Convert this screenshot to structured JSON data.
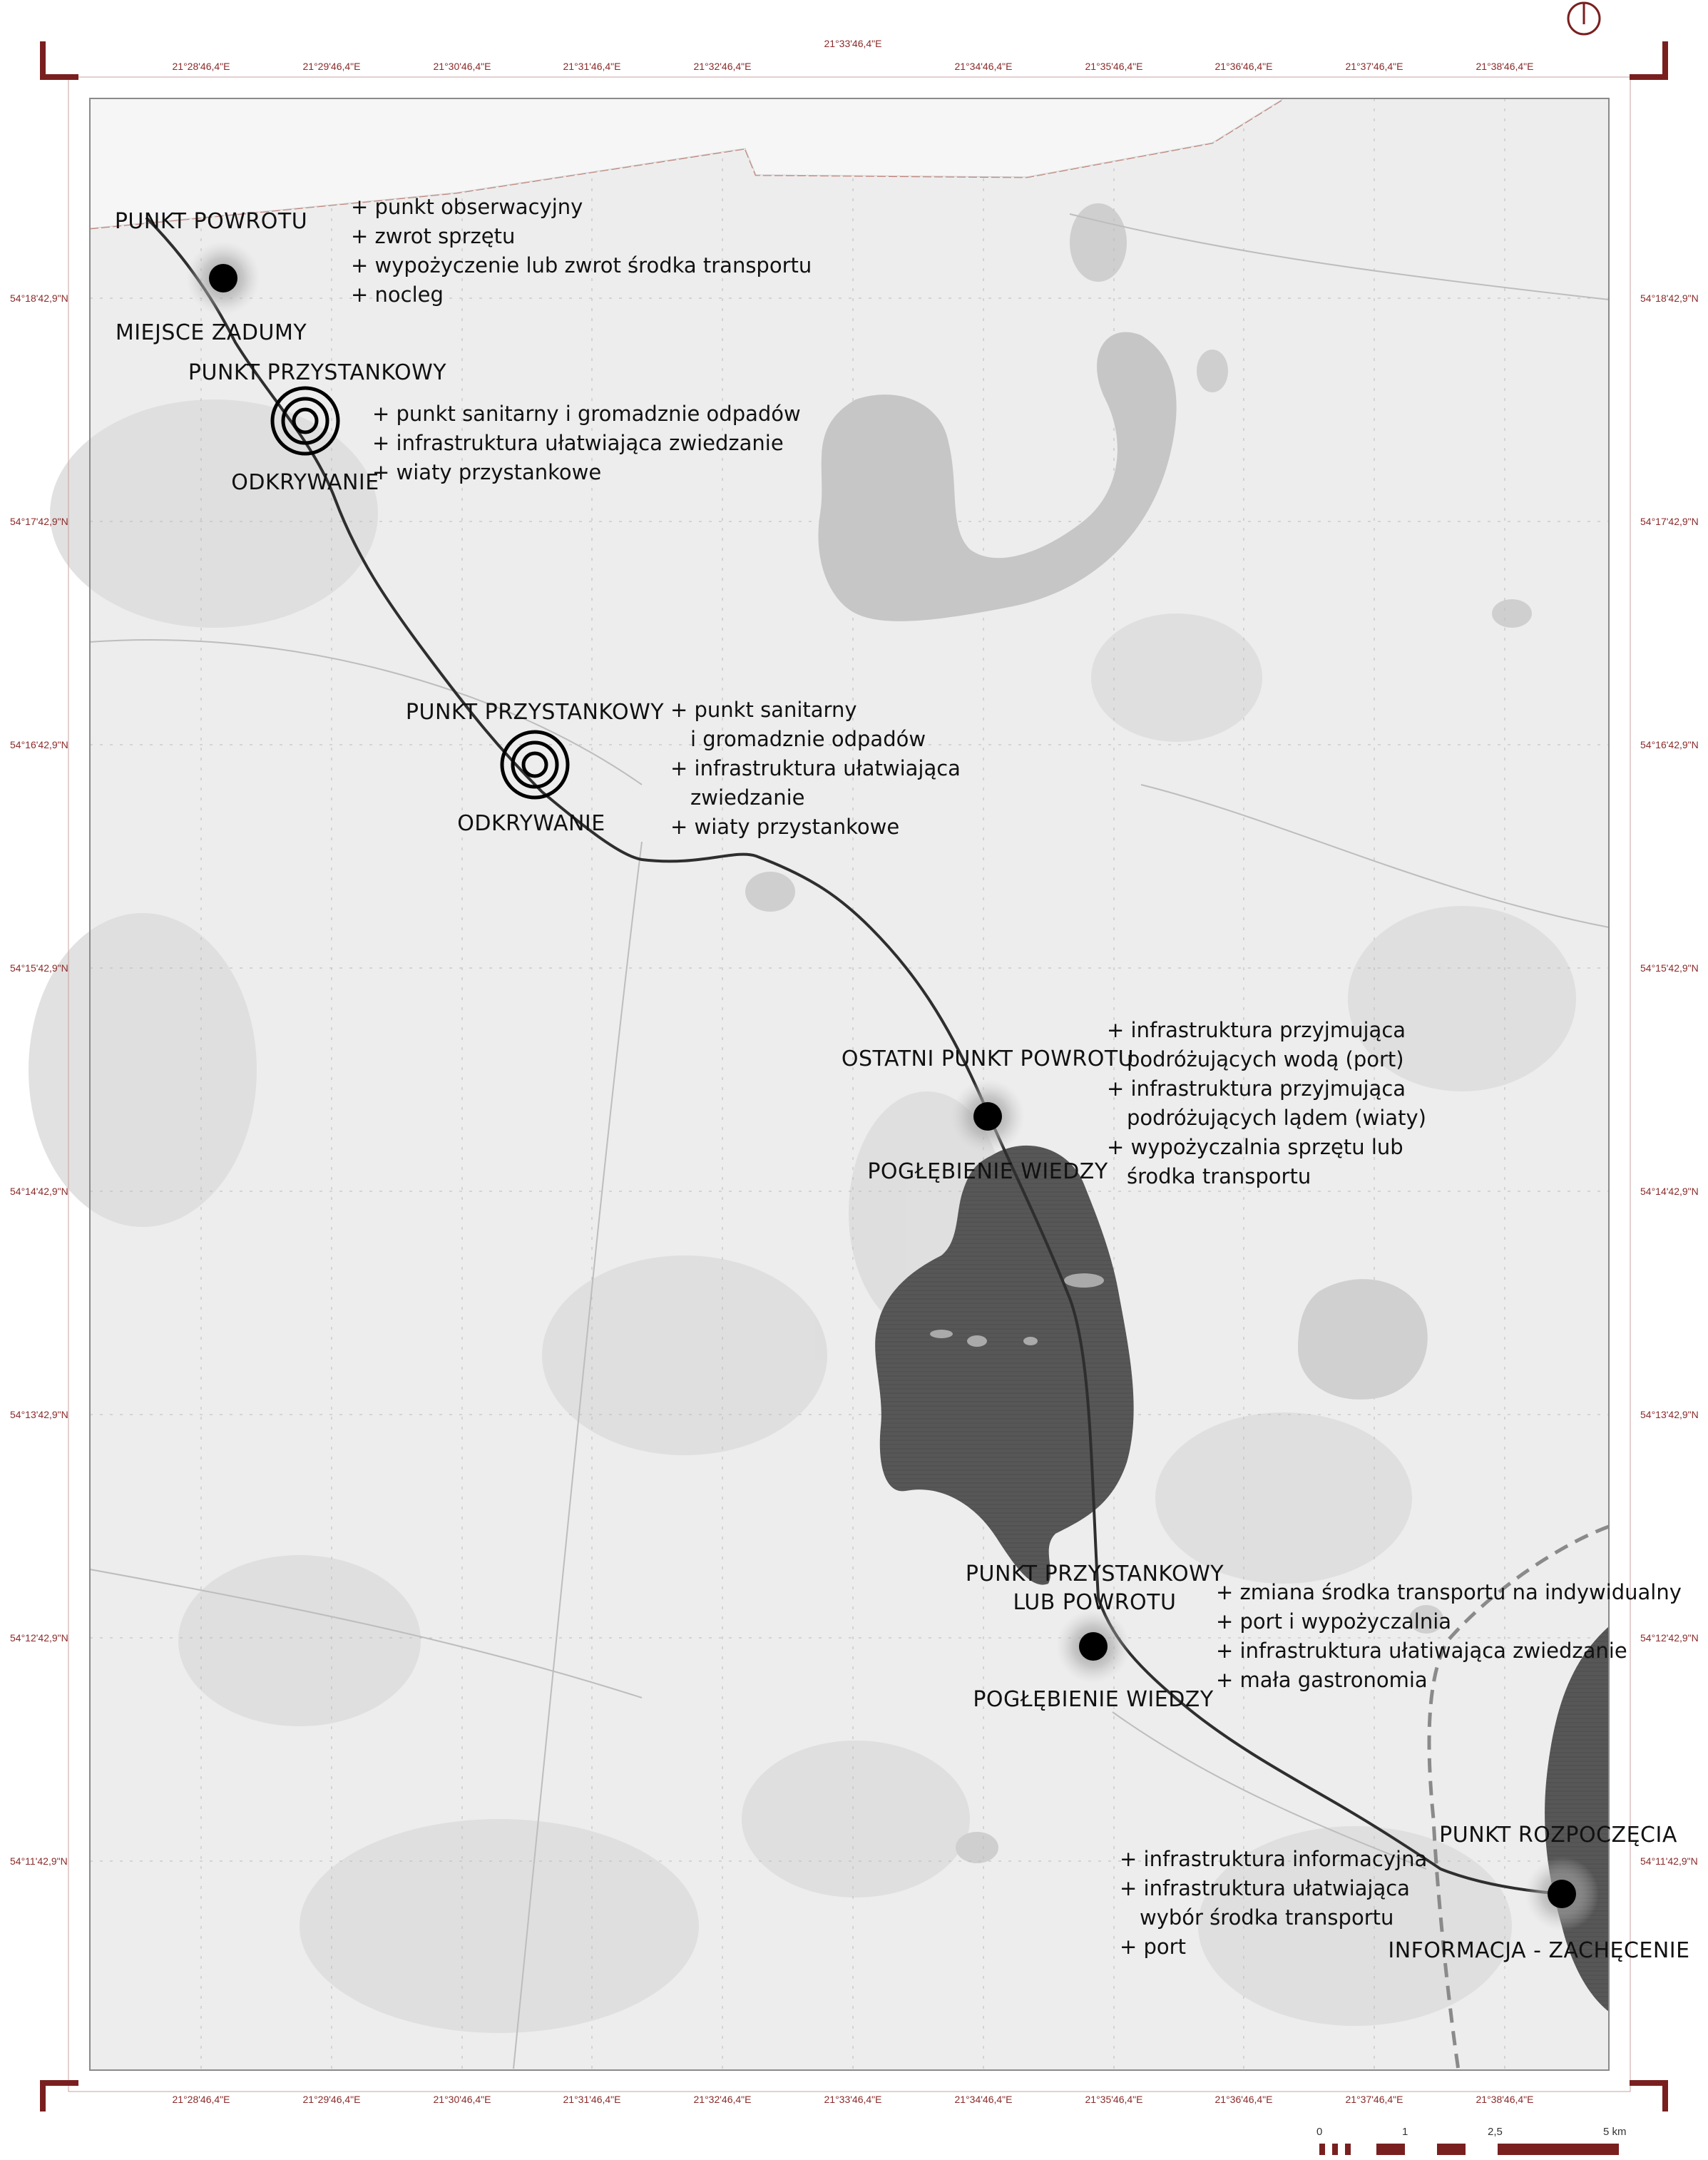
{
  "map": {
    "grid_coords": {
      "top_center": "21°33'46,4\"E",
      "lon": [
        "21°28'46,4\"E",
        "21°29'46,4\"E",
        "21°30'46,4\"E",
        "21°31'46,4\"E",
        "21°32'46,4\"E",
        "21°34'46,4\"E",
        "21°35'46,4\"E",
        "21°36'46,4\"E",
        "21°37'46,4\"E",
        "21°38'46,4\"E"
      ],
      "lon_bottom": [
        "21°28'46,4\"E",
        "21°29'46,4\"E",
        "21°30'46,4\"E",
        "21°31'46,4\"E",
        "21°32'46,4\"E",
        "21°33'46,4\"E",
        "21°34'46,4\"E",
        "21°35'46,4\"E",
        "21°36'46,4\"E",
        "21°37'46,4\"E",
        "21°38'46,4\"E"
      ],
      "lat": [
        "54°18'42,9\"N",
        "54°17'42,9\"N",
        "54°16'42,9\"N",
        "54°15'42,9\"N",
        "54°14'42,9\"N",
        "54°13'42,9\"N",
        "54°12'42,9\"N",
        "54°11'42,9\"N"
      ]
    },
    "colors": {
      "frame": "#7a1f1f",
      "route": "#3a3a3a",
      "lake_dark": "#5a5a5a",
      "lake_light": "#c8c8c8",
      "land": "#ececec"
    }
  },
  "points": [
    {
      "id": "p1",
      "title": "PUNKT POWROTU",
      "subtitle": "MIEJSCE ZADUMY",
      "symbol": "filled-dot",
      "amenities": [
        "+ punkt obserwacyjny",
        "+ zwrot sprzętu",
        "+ wypożyczenie lub zwrot środka transportu",
        "+ nocleg"
      ]
    },
    {
      "id": "p2",
      "title": "PUNKT PRZYSTANKOWY",
      "subtitle": "ODKRYWANIE",
      "symbol": "concentric-rings",
      "amenities": [
        "+ punkt sanitarny i gromadznie odpadów",
        "+ infrastruktura ułatwiająca zwiedzanie",
        "+ wiaty przystankowe"
      ]
    },
    {
      "id": "p3",
      "title": "PUNKT PRZYSTANKOWY",
      "subtitle": "ODKRYWANIE",
      "symbol": "concentric-rings",
      "amenities": [
        "+ punkt sanitarny",
        "i gromadznie odpadów",
        "+ infrastruktura ułatwiająca",
        "zwiedzanie",
        "+ wiaty przystankowe"
      ]
    },
    {
      "id": "p4",
      "title": "OSTATNI PUNKT POWROTU",
      "subtitle": "POGŁĘBIENIE WIEDZY",
      "symbol": "filled-dot",
      "amenities": [
        "+ infrastruktura przyjmująca",
        "podróżujących wodą (port)",
        "+ infrastruktura przyjmująca",
        "podróżujących lądem (wiaty)",
        "+ wypożyczalnia sprzętu lub",
        "środka transportu"
      ]
    },
    {
      "id": "p5",
      "title": "PUNKT PRZYSTANKOWY",
      "title2": "LUB POWROTU",
      "subtitle": "POGŁĘBIENIE WIEDZY",
      "symbol": "filled-dot",
      "amenities": [
        "+ zmiana środka transportu na indywidualny",
        "+ port i wypożyczalnia",
        "+ infrastruktura ułatiwająca zwiedzanie",
        "+ mała gastronomia"
      ]
    },
    {
      "id": "p6",
      "title": "PUNKT ROZPOCZĘCIA",
      "subtitle": "INFORMACJA - ZACHĘCENIE",
      "symbol": "filled-dot",
      "amenities": [
        "+ infrastruktura informacyjna",
        "+ infrastruktura ułatwiająca",
        "wybór środka transportu",
        "+ port"
      ]
    }
  ],
  "scale_bar": {
    "labels": [
      "0",
      "1",
      "2,5",
      "5 km"
    ]
  },
  "north_arrow": "north-arrow-icon"
}
